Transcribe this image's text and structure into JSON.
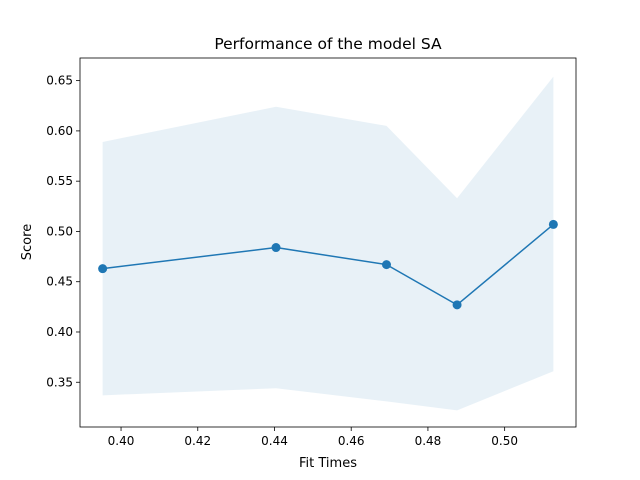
{
  "chart_data": {
    "type": "line",
    "title": "Performance of the model SA",
    "xlabel": "Fit Times",
    "ylabel": "Score",
    "xlim": [
      0.3893,
      0.5186
    ],
    "ylim": [
      0.3055,
      0.6725
    ],
    "x_ticks": [
      0.4,
      0.42,
      0.44,
      0.46,
      0.48,
      0.5
    ],
    "x_tick_labels": [
      "0.40",
      "0.42",
      "0.44",
      "0.46",
      "0.48",
      "0.50"
    ],
    "y_ticks": [
      0.35,
      0.4,
      0.45,
      0.5,
      0.55,
      0.6,
      0.65
    ],
    "y_tick_labels": [
      "0.35",
      "0.40",
      "0.45",
      "0.50",
      "0.55",
      "0.60",
      "0.65"
    ],
    "grid": false,
    "series": [
      {
        "x": [
          0.3952,
          0.4404,
          0.4692,
          0.4876,
          0.5127
        ],
        "values": [
          0.463,
          0.484,
          0.467,
          0.427,
          0.507
        ],
        "band_upper": [
          0.589,
          0.624,
          0.605,
          0.533,
          0.654
        ],
        "band_lower": [
          0.337,
          0.344,
          0.331,
          0.322,
          0.361
        ],
        "color": "#1f77b4",
        "band_color": "#1f77b4",
        "band_opacity": 0.1
      }
    ]
  }
}
